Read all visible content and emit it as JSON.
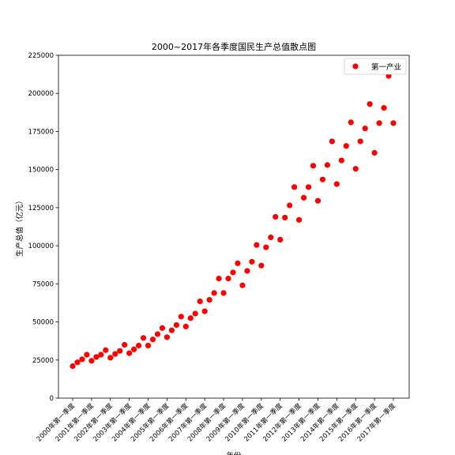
{
  "chart_data": {
    "type": "scatter",
    "title": "2000~2017年各季度国民生产总值散点图",
    "xlabel": "年份",
    "ylabel": "生产总值（亿元）",
    "ylim": [
      0,
      225000
    ],
    "yticks": [
      0,
      25000,
      50000,
      75000,
      100000,
      125000,
      150000,
      175000,
      200000,
      225000
    ],
    "xtick_labels": [
      "2000年第一季度",
      "2001年第一季度",
      "2002年第一季度",
      "2003年第一季度",
      "2004年第一季度",
      "2005年第一季度",
      "2006年第一季度",
      "2007年第一季度",
      "2008年第一季度",
      "2009年第一季度",
      "2010年第一季度",
      "2011年第一季度",
      "2012年第一季度",
      "2013年第一季度",
      "2014年第一季度",
      "2015年第一季度",
      "2016年第一季度",
      "2017年第一季度"
    ],
    "grid": false,
    "legend_position": "top-right",
    "series": [
      {
        "name": "第一产业",
        "color": "#ff0000",
        "marker": "circle",
        "values": [
          21000,
          23500,
          25500,
          28500,
          24500,
          27000,
          28500,
          31500,
          26500,
          29000,
          31000,
          35000,
          29500,
          32000,
          34500,
          39500,
          34500,
          38500,
          42000,
          46000,
          40000,
          44500,
          48000,
          53500,
          47000,
          52500,
          55500,
          63500,
          57000,
          64500,
          69000,
          78500,
          69000,
          78500,
          82500,
          88500,
          74000,
          83500,
          89500,
          100500,
          87000,
          99000,
          105500,
          119000,
          104000,
          118500,
          126500,
          138500,
          117000,
          131500,
          138500,
          152500,
          129500,
          143500,
          153000,
          168500,
          140500,
          156000,
          165500,
          181000,
          150500,
          168500,
          177000,
          193000,
          161000,
          180500,
          190500,
          211500,
          180500
        ]
      }
    ]
  }
}
